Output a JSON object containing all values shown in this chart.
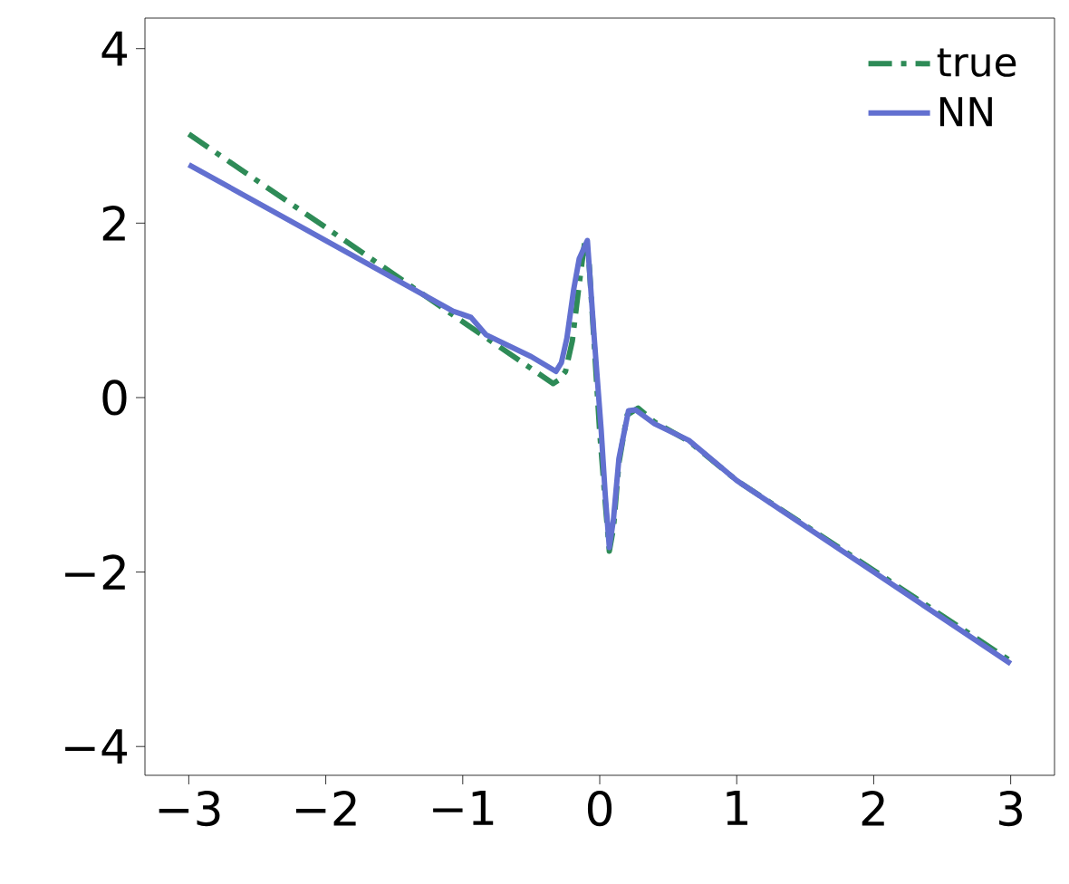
{
  "chart_data": {
    "type": "line",
    "xlim": [
      -3.32,
      3.32
    ],
    "ylim": [
      -4.33,
      4.35
    ],
    "xticks": [
      {
        "value": -3,
        "label": "−3"
      },
      {
        "value": -2,
        "label": "−2"
      },
      {
        "value": -1,
        "label": "−1"
      },
      0,
      1,
      2,
      3
    ],
    "yticks": [
      {
        "value": -4,
        "label": "−4"
      },
      {
        "value": -2,
        "label": "−2"
      },
      0,
      2,
      4
    ],
    "grid": false,
    "legend": "top right",
    "series": [
      {
        "name": "true",
        "color": "#2e8b57",
        "line_style": "dashdot",
        "x": [
          -3,
          -2,
          -1,
          -0.34,
          -0.3,
          -0.25,
          -0.2,
          -0.15,
          -0.11,
          -0.08,
          -0.04,
          0,
          0.04,
          0.07,
          0.1,
          0.14,
          0.2,
          0.28,
          0.4,
          0.65,
          1,
          2,
          3
        ],
        "values": [
          3.02,
          1.95,
          0.87,
          0.16,
          0.2,
          0.3,
          0.65,
          1.3,
          1.78,
          1.6,
          0.6,
          -0.4,
          -1.2,
          -1.76,
          -1.5,
          -0.75,
          -0.2,
          -0.12,
          -0.28,
          -0.5,
          -0.95,
          -1.98,
          -3.02
        ]
      },
      {
        "name": "NN",
        "color": "#6270d0",
        "line_style": "solid",
        "x": [
          -3,
          -2,
          -1.07,
          -0.94,
          -0.83,
          -0.5,
          -0.32,
          -0.28,
          -0.24,
          -0.19,
          -0.15,
          -0.09,
          -0.04,
          0.01,
          0.04,
          0.07,
          0.1,
          0.14,
          0.21,
          0.26,
          0.4,
          0.65,
          1,
          2,
          3
        ],
        "values": [
          2.67,
          1.8,
          0.99,
          0.92,
          0.72,
          0.47,
          0.3,
          0.4,
          0.68,
          1.24,
          1.59,
          1.8,
          0.68,
          -0.36,
          -1.11,
          -1.72,
          -1.4,
          -0.7,
          -0.15,
          -0.14,
          -0.3,
          -0.49,
          -0.95,
          -2.0,
          -3.05
        ]
      }
    ]
  }
}
